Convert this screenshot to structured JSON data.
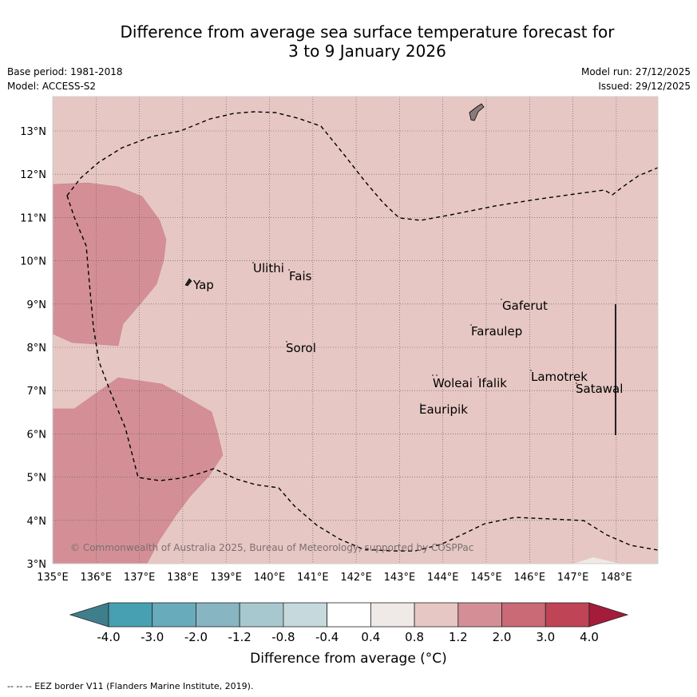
{
  "title_line1": "Difference from average sea surface temperature forecast for",
  "title_line2": "3 to 9 January 2026",
  "meta": {
    "base_period": "Base period: 1981-2018",
    "model": "Model: ACCESS-S2",
    "model_run": "Model run: 27/12/2025",
    "issued": "Issued: 29/12/2025"
  },
  "map": {
    "lon_labels": [
      "135°E",
      "136°E",
      "137°E",
      "138°E",
      "139°E",
      "140°E",
      "141°E",
      "142°E",
      "143°E",
      "144°E",
      "145°E",
      "146°E",
      "147°E",
      "148°E"
    ],
    "lat_labels": [
      "3°N",
      "4°N",
      "5°N",
      "6°N",
      "7°N",
      "8°N",
      "9°N",
      "10°N",
      "11°N",
      "12°N",
      "13°N"
    ],
    "places": [
      "Yap",
      "Ulithi",
      "Fais",
      "Gaferut",
      "Faraulep",
      "Sorol",
      "Woleai",
      "Ifalik",
      "Lamotrek",
      "Satawal",
      "Eauripik"
    ],
    "copyright": "© Commonwealth of Australia 2025, Bureau of Meteorology, supported by COSPPac",
    "colors": {
      "bg_anomaly_0.8_1.2": "#e6c7c3",
      "anomaly_1.2_2.0": "#d48f96",
      "anomaly_0.4_0.8": "#efe9e7"
    }
  },
  "colorbar": {
    "ticks": [
      "-4.0",
      "-3.0",
      "-2.0",
      "-1.2",
      "-0.8",
      "-0.4",
      "0.4",
      "0.8",
      "1.2",
      "2.0",
      "3.0",
      "4.0"
    ],
    "colors": [
      "#3f7f8c",
      "#47a0b2",
      "#68acbb",
      "#87b5c1",
      "#a8c8cf",
      "#c6d9dc",
      "#ffffff",
      "#efe9e7",
      "#e6c7c3",
      "#d48f96",
      "#c96a76",
      "#bf4456",
      "#a51c3a"
    ],
    "label": "Difference from average (°C)"
  },
  "footnote": "--  --  -- EEZ border V11 (Flanders Marine Institute, 2019)."
}
